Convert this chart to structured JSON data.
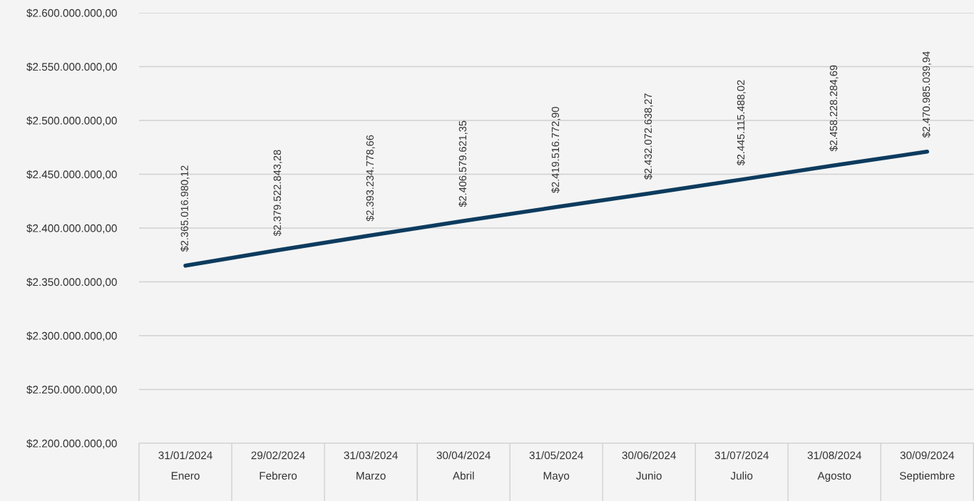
{
  "chart_data": {
    "type": "line",
    "categories": [
      "31/01/2024\nEnero",
      "29/02/2024\nFebrero",
      "31/03/2024\nMarzo",
      "30/04/2024\nAbril",
      "31/05/2024\nMayo",
      "30/06/2024\nJunio",
      "31/07/2024\nJulio",
      "31/08/2024\nAgosto",
      "30/09/2024\nSeptiembre"
    ],
    "series": [
      {
        "color": "#0d3b5e",
        "values": [
          2365016980.12,
          2379522843.28,
          2393234778.66,
          2406579621.35,
          2419516772.9,
          2432072638.27,
          2445115488.02,
          2458228284.69,
          2470985039.94
        ],
        "value_labels": [
          "$2.365.016.980,12",
          "$2.379.522.843,28",
          "$2.393.234.778,66",
          "$2.406.579.621,35",
          "$2.419.516.772,90",
          "$2.432.072.638,27",
          "$2.445.115.488,02",
          "$2.458.228.284,69",
          "$2.470.985.039,94"
        ]
      }
    ],
    "ylim": [
      2200000000,
      2600000000
    ],
    "yticks": [
      {
        "value": 2200000000,
        "label": "$2.200.000.000,00"
      },
      {
        "value": 2250000000,
        "label": "$2.250.000.000,00"
      },
      {
        "value": 2300000000,
        "label": "$2.300.000.000,00"
      },
      {
        "value": 2350000000,
        "label": "$2.350.000.000,00"
      },
      {
        "value": 2400000000,
        "label": "$2.400.000.000,00"
      },
      {
        "value": 2450000000,
        "label": "$2.450.000.000,00"
      },
      {
        "value": 2500000000,
        "label": "$2.500.000.000,00"
      },
      {
        "value": 2550000000,
        "label": "$2.550.000.000,00"
      },
      {
        "value": 2600000000,
        "label": "$2.600.000.000,00"
      }
    ],
    "grid": "y",
    "marker": "none",
    "line_style": "solid",
    "legend": false
  }
}
